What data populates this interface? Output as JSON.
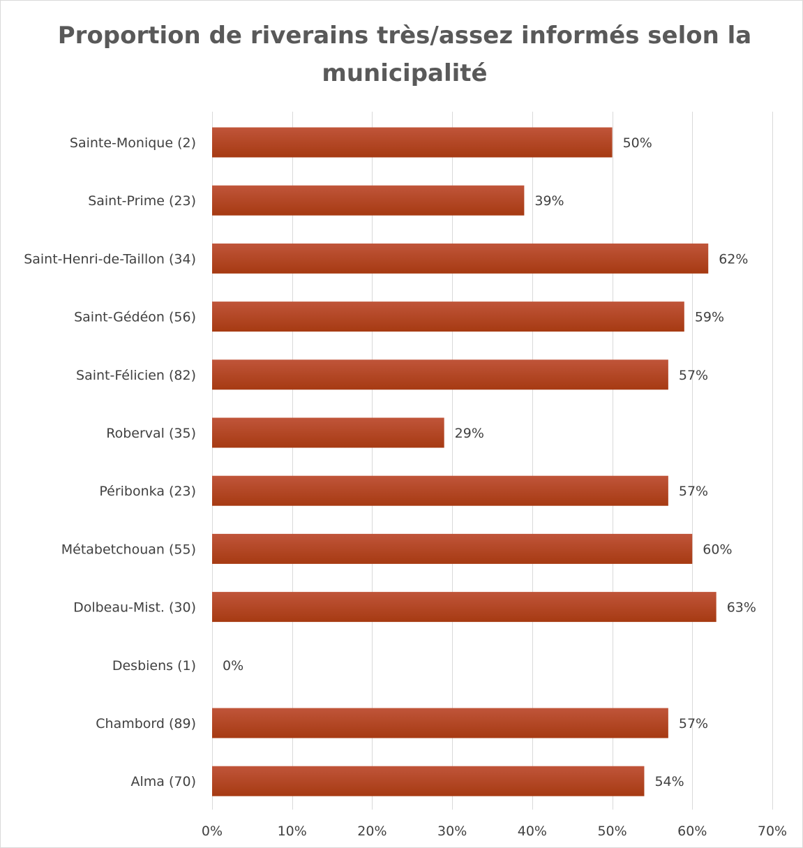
{
  "chart_data": {
    "type": "bar",
    "orientation": "horizontal",
    "title": "Proportion de riverains très/assez informés selon la municipalité",
    "categories": [
      "Sainte-Monique (2)",
      "Saint-Prime (23)",
      "Saint-Henri-de-Taillon (34)",
      "Saint-Gédéon (56)",
      "Saint-Félicien (82)",
      "Roberval (35)",
      "Péribonka (23)",
      "Métabetchouan (55)",
      "Dolbeau-Mist. (30)",
      "Desbiens (1)",
      "Chambord (89)",
      "Alma (70)"
    ],
    "values": [
      50,
      39,
      62,
      59,
      57,
      29,
      57,
      60,
      63,
      0,
      57,
      54
    ],
    "data_labels": [
      "50%",
      "39%",
      "62%",
      "59%",
      "57%",
      "29%",
      "57%",
      "60%",
      "63%",
      "0%",
      "57%",
      "54%"
    ],
    "x_ticks": [
      0,
      10,
      20,
      30,
      40,
      50,
      60,
      70
    ],
    "x_tick_labels": [
      "0%",
      "10%",
      "20%",
      "30%",
      "40%",
      "50%",
      "60%",
      "70%"
    ],
    "xlim": [
      0,
      70
    ],
    "xlabel": "",
    "ylabel": "",
    "grid": "vertical",
    "legend": "none",
    "colors": {
      "bar_top": "#c0553a",
      "bar_bottom": "#a63a12",
      "grid": "#d9d9d9",
      "text": "#404040",
      "title": "#595959"
    }
  }
}
